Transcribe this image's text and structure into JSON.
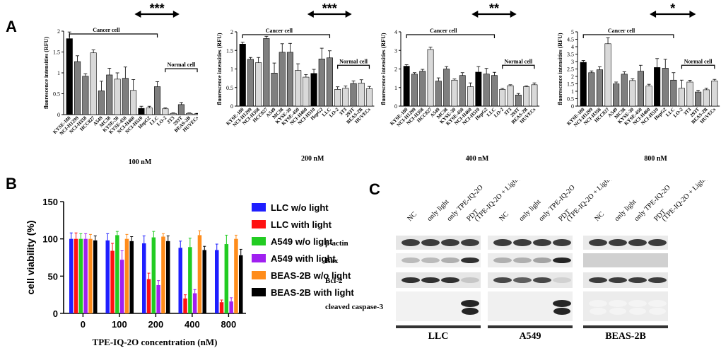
{
  "panels": {
    "A": "A",
    "B": "B",
    "C": "C"
  },
  "chart_data": [
    {
      "type": "bar",
      "panel": "A",
      "ylabel": "fluorescence intensities (RFU)",
      "xlabel": "100 nM",
      "ylim": [
        0,
        2
      ],
      "yticks": [
        0,
        0.5,
        1,
        1.5,
        2
      ],
      "cancer_label": "Cancer cell",
      "normal_label": "Normal cell",
      "significance": "***",
      "categories": [
        "KYSE-180",
        "NCI-H1299",
        "NCI-H358",
        "HCC827",
        "A549",
        "MC38",
        "KYSE-30",
        "KYSE-450",
        "NCI-H460",
        "NCI-H510",
        "HepG2",
        "LLC",
        "LO-2",
        "3T3",
        "293T",
        "BEAS-2B",
        "HUVECs"
      ],
      "values": [
        1.82,
        1.27,
        0.92,
        1.48,
        0.57,
        0.95,
        0.85,
        0.87,
        0.58,
        0.15,
        0.16,
        0.67,
        0.14,
        0.03,
        0.24,
        0.03,
        0.02
      ],
      "errors": [
        0.16,
        0.14,
        0.06,
        0.07,
        0.23,
        0.16,
        0.15,
        0.27,
        0.26,
        0.05,
        0.04,
        0.12,
        0.02,
        0.01,
        0.05,
        0.01,
        0.01
      ],
      "colors": [
        "#000000",
        "#7f7f7f",
        "#7f7f7f",
        "#d9d9d9",
        "#7f7f7f",
        "#7f7f7f",
        "#d9d9d9",
        "#7f7f7f",
        "#d9d9d9",
        "#000000",
        "#d9d9d9",
        "#7f7f7f",
        "#d9d9d9",
        "#d9d9d9",
        "#7f7f7f",
        "#d9d9d9",
        "#d9d9d9"
      ]
    },
    {
      "type": "bar",
      "panel": "A",
      "ylabel": "fluorescence intensities (RFU)",
      "xlabel": "200 nM",
      "ylim": [
        0,
        2
      ],
      "yticks": [
        0,
        0.5,
        1,
        1.5,
        2
      ],
      "cancer_label": "Cancer cell",
      "normal_label": "Normal cell",
      "significance": "***",
      "categories": [
        "KYSE-180",
        "NCI-H1299",
        "NCI-H358",
        "HCC827",
        "A549",
        "MC38",
        "KYSE-30",
        "KYSE-450",
        "NCI-H460",
        "NCI-H510",
        "HepG2",
        "LLC",
        "LO-2",
        "3T3",
        "293T",
        "BEAS-2B",
        "HUVECs"
      ],
      "values": [
        1.67,
        1.26,
        1.17,
        1.82,
        0.89,
        1.45,
        1.45,
        0.96,
        0.78,
        0.88,
        1.27,
        1.3,
        0.45,
        0.48,
        0.61,
        0.62,
        0.47
      ],
      "errors": [
        0.05,
        0.05,
        0.14,
        0.06,
        0.27,
        0.23,
        0.24,
        0.18,
        0.07,
        0.11,
        0.29,
        0.19,
        0.07,
        0.06,
        0.07,
        0.09,
        0.06
      ],
      "colors": [
        "#000000",
        "#7f7f7f",
        "#d9d9d9",
        "#7f7f7f",
        "#7f7f7f",
        "#7f7f7f",
        "#7f7f7f",
        "#d9d9d9",
        "#d9d9d9",
        "#000000",
        "#7f7f7f",
        "#7f7f7f",
        "#d9d9d9",
        "#d9d9d9",
        "#7f7f7f",
        "#d9d9d9",
        "#d9d9d9"
      ]
    },
    {
      "type": "bar",
      "panel": "A",
      "ylabel": "fluorescence intensities (RFU)",
      "xlabel": "400 nM",
      "ylim": [
        0,
        4
      ],
      "yticks": [
        0,
        1,
        2,
        3,
        4
      ],
      "cancer_label": "Cancer cell",
      "normal_label": "Normal cell",
      "significance": "**",
      "categories": [
        "KYSE-180",
        "NCI-H1299",
        "NCI-H358",
        "HCC827",
        "A549",
        "MC38",
        "KYSE-30",
        "KYSE-450",
        "NCI-H460",
        "NCI-H510",
        "HepG2",
        "LLC",
        "LO-2",
        "3T3",
        "293T",
        "BEAS-2B",
        "HUVECs"
      ],
      "values": [
        2.15,
        1.72,
        1.88,
        3.05,
        1.35,
        2.0,
        1.4,
        1.65,
        1.05,
        1.83,
        1.73,
        1.65,
        0.9,
        1.1,
        0.6,
        1.05,
        1.15
      ],
      "errors": [
        0.08,
        0.08,
        0.1,
        0.12,
        0.17,
        0.13,
        0.06,
        0.15,
        0.2,
        0.3,
        0.3,
        0.17,
        0.05,
        0.05,
        0.08,
        0.04,
        0.1
      ],
      "colors": [
        "#000000",
        "#7f7f7f",
        "#7f7f7f",
        "#d9d9d9",
        "#7f7f7f",
        "#7f7f7f",
        "#d9d9d9",
        "#7f7f7f",
        "#d9d9d9",
        "#000000",
        "#7f7f7f",
        "#7f7f7f",
        "#d9d9d9",
        "#d9d9d9",
        "#7f7f7f",
        "#d9d9d9",
        "#d9d9d9"
      ]
    },
    {
      "type": "bar",
      "panel": "A",
      "ylabel": "fluorescence intensities (RFU)",
      "xlabel": "800 nM",
      "ylim": [
        0,
        5
      ],
      "yticks": [
        0,
        0.5,
        1,
        1.5,
        2,
        2.5,
        3,
        3.5,
        4,
        4.5,
        5
      ],
      "cancer_label": "Cancer cell",
      "normal_label": "Normal cell",
      "significance": "*",
      "categories": [
        "KYSE-180",
        "NCI-H1299",
        "NCI-H358",
        "HCC827",
        "A549",
        "MC38",
        "KYSE-30",
        "KYSE-450",
        "NCI-H460",
        "NCI-H510",
        "HepG2",
        "LLC",
        "LO-2",
        "3T3",
        "293T",
        "BEAS-2B",
        "HUVECs"
      ],
      "values": [
        2.95,
        2.25,
        2.45,
        4.2,
        1.5,
        2.15,
        1.72,
        2.35,
        1.35,
        2.6,
        2.55,
        1.75,
        1.2,
        1.62,
        0.95,
        1.1,
        1.7
      ],
      "errors": [
        0.12,
        0.12,
        0.2,
        0.4,
        0.12,
        0.16,
        0.12,
        0.4,
        0.12,
        0.6,
        0.6,
        0.5,
        0.55,
        0.12,
        0.12,
        0.1,
        0.1
      ],
      "colors": [
        "#000000",
        "#7f7f7f",
        "#7f7f7f",
        "#d9d9d9",
        "#7f7f7f",
        "#7f7f7f",
        "#d9d9d9",
        "#7f7f7f",
        "#d9d9d9",
        "#000000",
        "#7f7f7f",
        "#7f7f7f",
        "#d9d9d9",
        "#d9d9d9",
        "#7f7f7f",
        "#d9d9d9",
        "#d9d9d9"
      ]
    },
    {
      "type": "bar",
      "panel": "B",
      "ylabel": "cell viability (%)",
      "xlabel": "TPE-IQ-2O concentration  (nM)",
      "ylim": [
        0,
        150
      ],
      "yticks": [
        0,
        50,
        100,
        150
      ],
      "categories": [
        "0",
        "100",
        "200",
        "400",
        "800"
      ],
      "series": [
        {
          "name": "LLC w/o light",
          "color": "#1f1fff",
          "values": [
            100,
            98,
            94,
            88,
            85
          ],
          "errors": [
            8,
            9,
            10,
            9,
            8
          ]
        },
        {
          "name": "LLC with light",
          "color": "#ff1111",
          "values": [
            100,
            84,
            46,
            20,
            15
          ],
          "errors": [
            8,
            10,
            8,
            5,
            3
          ]
        },
        {
          "name": "A549 w/o light",
          "color": "#22cc22",
          "values": [
            100,
            105,
            102,
            89,
            93
          ],
          "errors": [
            7,
            5,
            8,
            12,
            12
          ]
        },
        {
          "name": "A549 with light",
          "color": "#a020f0",
          "values": [
            100,
            72,
            38,
            27,
            16
          ],
          "errors": [
            7,
            12,
            6,
            5,
            5
          ]
        },
        {
          "name": "BEAS-2B w/o light",
          "color": "#ff8c1a",
          "values": [
            100,
            100,
            103,
            105,
            100
          ],
          "errors": [
            6,
            6,
            4,
            6,
            5
          ]
        },
        {
          "name": "BEAS-2B with light",
          "color": "#000000",
          "values": [
            98,
            97,
            97,
            85,
            78
          ],
          "errors": [
            6,
            6,
            7,
            5,
            8
          ]
        }
      ]
    }
  ],
  "blot": {
    "lanes": [
      "NC",
      "only light",
      "only TPE-IQ-2O",
      "PDT\n(TPE-IQ-2O + Light)",
      "NC",
      "only light",
      "only TPE-IQ-2O",
      "PDT\n(TPE-IQ-2O + Light)",
      "NC",
      "only light",
      "only TPE-IQ-2O",
      "PDT\n(TPE-IQ-2O + Light)"
    ],
    "rows": [
      "β-actin",
      "Bax",
      "Bcl-2",
      "cleaved caspase-3"
    ],
    "groups": [
      "LLC",
      "A549",
      "BEAS-2B"
    ]
  }
}
